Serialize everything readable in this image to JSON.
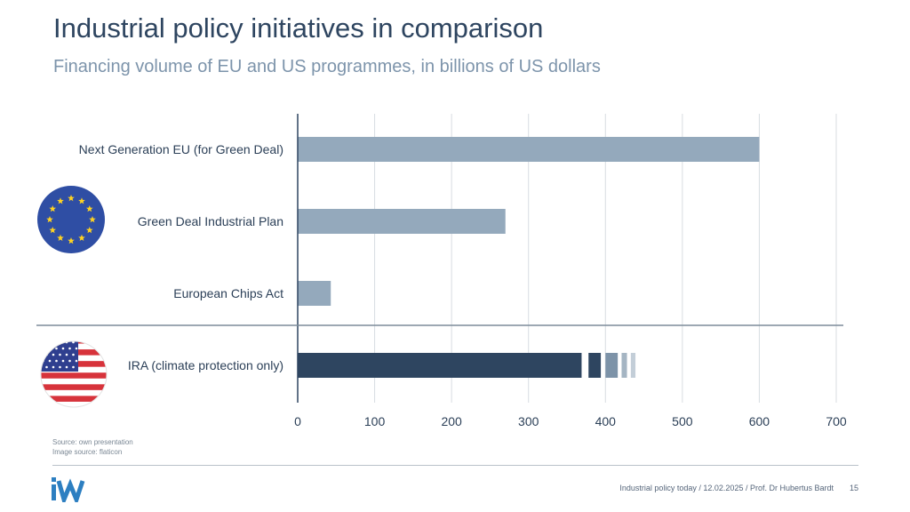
{
  "header": {
    "title": "Industrial policy initiatives in comparison",
    "subtitle": "Financing volume of EU and US programmes, in billions of US dollars"
  },
  "chart_data": {
    "type": "bar",
    "orientation": "horizontal",
    "categories": [
      "Next Generation EU (for Green Deal)",
      "Green Deal Industrial Plan",
      "European Chips Act",
      "IRA (climate protection only)"
    ],
    "values": [
      600,
      270,
      43,
      369
    ],
    "ira_uncertainty_segments": [
      {
        "from": 378,
        "to": 394,
        "color": "#2e4560"
      },
      {
        "from": 400,
        "to": 416,
        "color": "#7d93a8"
      },
      {
        "from": 421,
        "to": 428,
        "color": "#a5b5c3"
      },
      {
        "from": 433,
        "to": 439,
        "color": "#c3ced8"
      }
    ],
    "groups": [
      {
        "name": "EU",
        "categories": [
          0,
          1,
          2
        ],
        "flag": "eu-flag-icon"
      },
      {
        "name": "US",
        "categories": [
          3
        ],
        "flag": "us-flag-icon"
      }
    ],
    "bar_colors": [
      "#94a9bc",
      "#94a9bc",
      "#94a9bc",
      "#2e4560"
    ],
    "xlim": [
      0,
      700
    ],
    "xticks": [
      0,
      100,
      200,
      300,
      400,
      500,
      600,
      700
    ],
    "grid": true,
    "xlabel": "",
    "ylabel": ""
  },
  "footer": {
    "source_line1": "Source: own presentation",
    "source_line2": "Image source: flaticon",
    "logo_text": "IW",
    "citation": "Industrial policy today / 12.02.2025 / Prof. Dr Hubertus Bardt",
    "page_number": "15"
  },
  "colors": {
    "eu_bar": "#94a9bc",
    "us_bar": "#2e4560",
    "title": "#2e4560",
    "subtitle": "#7d94ab",
    "logo": "#2d7fc1"
  }
}
